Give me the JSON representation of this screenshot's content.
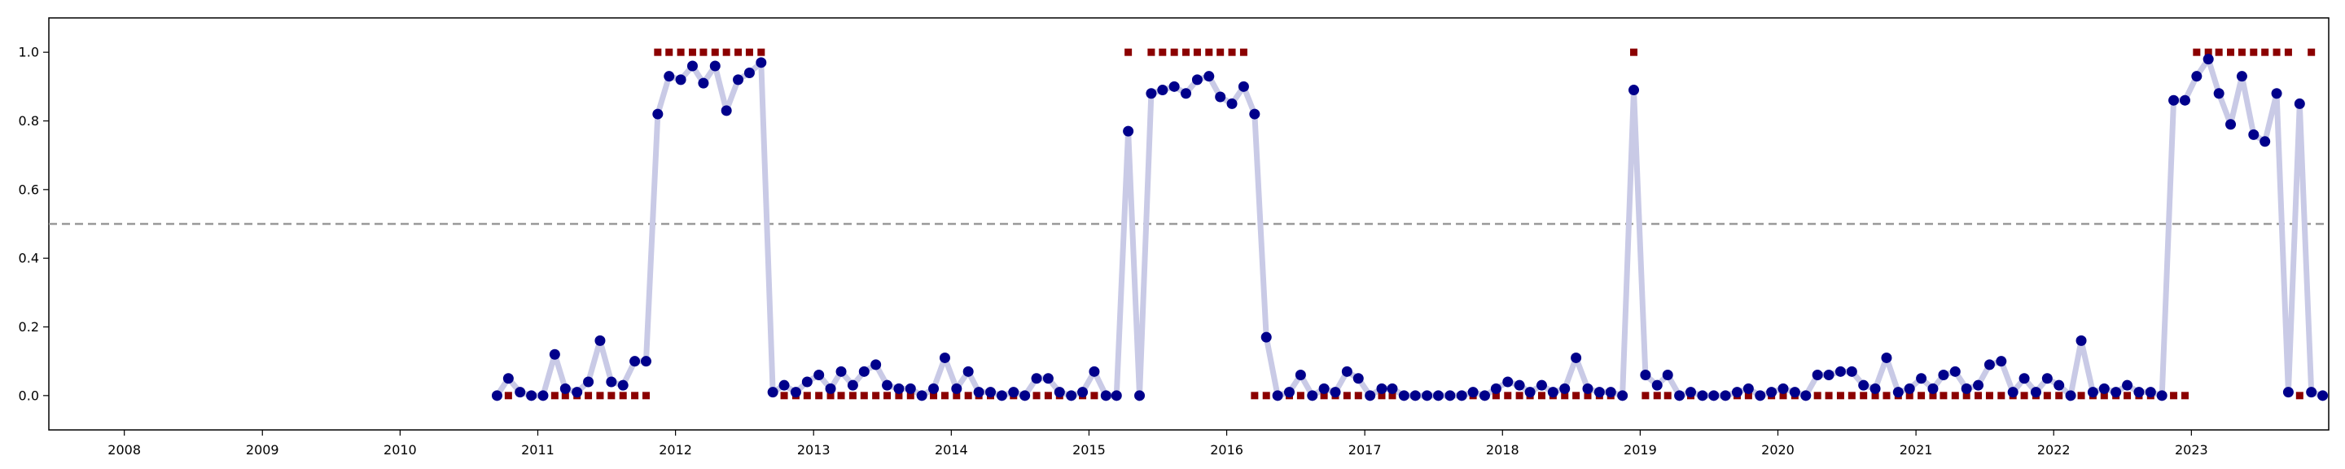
{
  "chart_data": {
    "type": "line",
    "title": "",
    "xlabel": "",
    "ylabel": "",
    "x_range": [
      "2007-06-15",
      "2023-12-31"
    ],
    "ylim": [
      -0.1,
      1.1
    ],
    "grid": false,
    "legend": "none",
    "x_ticks": [
      "2008",
      "2009",
      "2010",
      "2011",
      "2012",
      "2013",
      "2014",
      "2015",
      "2016",
      "2017",
      "2018",
      "2019",
      "2020",
      "2021",
      "2022",
      "2023"
    ],
    "y_ticks": [
      "0.0",
      "0.2",
      "0.4",
      "0.6",
      "0.8",
      "1.0"
    ],
    "threshold": 0.5,
    "colors": {
      "line": "#c9cae6",
      "points": "#00008b",
      "binary": "#8b0000",
      "threshold": "#999999",
      "axis": "#000000"
    },
    "series": [
      {
        "kind": "probability_line_with_points",
        "x": [
          "2010-09",
          "2010-10",
          "2010-11",
          "2010-12",
          "2011-01",
          "2011-02",
          "2011-03",
          "2011-04",
          "2011-05",
          "2011-06",
          "2011-07",
          "2011-08",
          "2011-09",
          "2011-10",
          "2011-11",
          "2011-12",
          "2012-01",
          "2012-02",
          "2012-03",
          "2012-04",
          "2012-05",
          "2012-06",
          "2012-07",
          "2012-08",
          "2012-09",
          "2012-10",
          "2012-11",
          "2012-12",
          "2013-01",
          "2013-02",
          "2013-03",
          "2013-04",
          "2013-05",
          "2013-06",
          "2013-07",
          "2013-08",
          "2013-09",
          "2013-10",
          "2013-11",
          "2013-12",
          "2014-01",
          "2014-02",
          "2014-03",
          "2014-04",
          "2014-05",
          "2014-06",
          "2014-07",
          "2014-08",
          "2014-09",
          "2014-10",
          "2014-11",
          "2014-12",
          "2015-01",
          "2015-02",
          "2015-03",
          "2015-04",
          "2015-05",
          "2015-06",
          "2015-07",
          "2015-08",
          "2015-09",
          "2015-10",
          "2015-11",
          "2015-12",
          "2016-01",
          "2016-02",
          "2016-03",
          "2016-04",
          "2016-05",
          "2016-06",
          "2016-07",
          "2016-08",
          "2016-09",
          "2016-10",
          "2016-11",
          "2016-12",
          "2017-01",
          "2017-02",
          "2017-03",
          "2017-04",
          "2017-05",
          "2017-06",
          "2017-07",
          "2017-08",
          "2017-09",
          "2017-10",
          "2017-11",
          "2017-12",
          "2018-01",
          "2018-02",
          "2018-03",
          "2018-04",
          "2018-05",
          "2018-06",
          "2018-07",
          "2018-08",
          "2018-09",
          "2018-10",
          "2018-11",
          "2018-12",
          "2019-01",
          "2019-02",
          "2019-03",
          "2019-04",
          "2019-05",
          "2019-06",
          "2019-07",
          "2019-08",
          "2019-09",
          "2019-10",
          "2019-11",
          "2019-12",
          "2020-01",
          "2020-02",
          "2020-03",
          "2020-04",
          "2020-05",
          "2020-06",
          "2020-07",
          "2020-08",
          "2020-09",
          "2020-10",
          "2020-11",
          "2020-12",
          "2021-01",
          "2021-02",
          "2021-03",
          "2021-04",
          "2021-05",
          "2021-06",
          "2021-07",
          "2021-08",
          "2021-09",
          "2021-10",
          "2021-11",
          "2021-12",
          "2022-01",
          "2022-02",
          "2022-03",
          "2022-04",
          "2022-05",
          "2022-06",
          "2022-07",
          "2022-08",
          "2022-09",
          "2022-10",
          "2022-11",
          "2022-12",
          "2023-01",
          "2023-02",
          "2023-03",
          "2023-04",
          "2023-05",
          "2023-06",
          "2023-07",
          "2023-08",
          "2023-09",
          "2023-10",
          "2023-11",
          "2023-12"
        ],
        "values": [
          0.0,
          0.05,
          0.01,
          0.0,
          0.0,
          0.12,
          0.02,
          0.01,
          0.04,
          0.16,
          0.04,
          0.03,
          0.1,
          0.1,
          0.82,
          0.93,
          0.92,
          0.96,
          0.91,
          0.96,
          0.83,
          0.92,
          0.94,
          0.97,
          0.01,
          0.03,
          0.01,
          0.04,
          0.06,
          0.02,
          0.07,
          0.03,
          0.07,
          0.09,
          0.03,
          0.02,
          0.02,
          0.0,
          0.02,
          0.11,
          0.02,
          0.07,
          0.01,
          0.01,
          0.0,
          0.01,
          0.0,
          0.05,
          0.05,
          0.01,
          0.0,
          0.01,
          0.07,
          0.0,
          0.0,
          0.77,
          0.0,
          0.88,
          0.89,
          0.9,
          0.88,
          0.92,
          0.93,
          0.87,
          0.85,
          0.9,
          0.82,
          0.17,
          0.0,
          0.01,
          0.06,
          0.0,
          0.02,
          0.01,
          0.07,
          0.05,
          0.0,
          0.02,
          0.02,
          0.0,
          0.0,
          0.0,
          0.0,
          0.0,
          0.0,
          0.01,
          0.0,
          0.02,
          0.04,
          0.03,
          0.01,
          0.03,
          0.01,
          0.02,
          0.11,
          0.02,
          0.01,
          0.01,
          0.0,
          0.89,
          0.06,
          0.03,
          0.06,
          0.0,
          0.01,
          0.0,
          0.0,
          0.0,
          0.01,
          0.02,
          0.0,
          0.01,
          0.02,
          0.01,
          0.0,
          0.06,
          0.06,
          0.07,
          0.07,
          0.03,
          0.02,
          0.11,
          0.01,
          0.02,
          0.05,
          0.02,
          0.06,
          0.07,
          0.02,
          0.03,
          0.09,
          0.1,
          0.01,
          0.05,
          0.01,
          0.05,
          0.03,
          0.0,
          0.16,
          0.01,
          0.02,
          0.01,
          0.03,
          0.01,
          0.01,
          0.0,
          0.86,
          0.86,
          0.93,
          0.98,
          0.88,
          0.79,
          0.93,
          0.76,
          0.74,
          0.88,
          0.01,
          0.85,
          0.01,
          0.0
        ]
      },
      {
        "kind": "binary_markers",
        "x": [
          "2010-10",
          "2011-02",
          "2011-03",
          "2011-04",
          "2011-05",
          "2011-06",
          "2011-07",
          "2011-08",
          "2011-09",
          "2011-10",
          "2011-11",
          "2011-12",
          "2012-01",
          "2012-02",
          "2012-03",
          "2012-04",
          "2012-05",
          "2012-06",
          "2012-07",
          "2012-08",
          "2012-10",
          "2012-11",
          "2012-12",
          "2013-01",
          "2013-02",
          "2013-03",
          "2013-04",
          "2013-05",
          "2013-06",
          "2013-07",
          "2013-08",
          "2013-09",
          "2013-10",
          "2013-11",
          "2013-12",
          "2014-01",
          "2014-02",
          "2014-03",
          "2014-04",
          "2014-05",
          "2014-06",
          "2014-07",
          "2014-08",
          "2014-09",
          "2014-10",
          "2014-11",
          "2014-12",
          "2015-01",
          "2015-02",
          "2015-03",
          "2015-04",
          "2015-06",
          "2015-07",
          "2015-08",
          "2015-09",
          "2015-10",
          "2015-11",
          "2015-12",
          "2016-01",
          "2016-02",
          "2016-03",
          "2016-04",
          "2016-05",
          "2016-06",
          "2016-07",
          "2016-08",
          "2016-09",
          "2016-10",
          "2016-11",
          "2016-12",
          "2017-01",
          "2017-02",
          "2017-03",
          "2017-04",
          "2017-05",
          "2017-06",
          "2017-07",
          "2017-08",
          "2017-09",
          "2017-10",
          "2017-11",
          "2017-12",
          "2018-01",
          "2018-02",
          "2018-03",
          "2018-04",
          "2018-05",
          "2018-06",
          "2018-07",
          "2018-08",
          "2018-09",
          "2018-10",
          "2018-11",
          "2018-12",
          "2019-01",
          "2019-02",
          "2019-03",
          "2019-04",
          "2019-05",
          "2019-06",
          "2019-07",
          "2019-08",
          "2019-09",
          "2019-10",
          "2019-11",
          "2019-12",
          "2020-01",
          "2020-02",
          "2020-03",
          "2020-04",
          "2020-05",
          "2020-06",
          "2020-07",
          "2020-08",
          "2020-09",
          "2020-10",
          "2020-11",
          "2020-12",
          "2021-01",
          "2021-02",
          "2021-03",
          "2021-04",
          "2021-05",
          "2021-06",
          "2021-07",
          "2021-08",
          "2021-09",
          "2021-10",
          "2021-11",
          "2021-12",
          "2022-01",
          "2022-02",
          "2022-03",
          "2022-04",
          "2022-05",
          "2022-06",
          "2022-07",
          "2022-08",
          "2022-09",
          "2022-10",
          "2022-11",
          "2022-12",
          "2023-01",
          "2023-02",
          "2023-03",
          "2023-04",
          "2023-05",
          "2023-06",
          "2023-07",
          "2023-08",
          "2023-09",
          "2023-10",
          "2023-11"
        ],
        "values": [
          0,
          0,
          0,
          0,
          0,
          0,
          0,
          0,
          0,
          0,
          1,
          1,
          1,
          1,
          1,
          1,
          1,
          1,
          1,
          1,
          0,
          0,
          0,
          0,
          0,
          0,
          0,
          0,
          0,
          0,
          0,
          0,
          0,
          0,
          0,
          0,
          0,
          0,
          0,
          0,
          0,
          0,
          0,
          0,
          0,
          0,
          0,
          0,
          0,
          0,
          1,
          1,
          1,
          1,
          1,
          1,
          1,
          1,
          1,
          1,
          0,
          0,
          0,
          0,
          0,
          0,
          0,
          0,
          0,
          0,
          0,
          0,
          0,
          0,
          0,
          0,
          0,
          0,
          0,
          0,
          0,
          0,
          0,
          0,
          0,
          0,
          0,
          0,
          0,
          0,
          0,
          0,
          0,
          1,
          0,
          0,
          0,
          0,
          0,
          0,
          0,
          0,
          0,
          0,
          0,
          0,
          0,
          0,
          0,
          0,
          0,
          0,
          0,
          0,
          0,
          0,
          0,
          0,
          0,
          0,
          0,
          0,
          0,
          0,
          0,
          0,
          0,
          0,
          0,
          0,
          0,
          0,
          0,
          0,
          0,
          0,
          0,
          0,
          0,
          0,
          0,
          0,
          1,
          1,
          1,
          1,
          1,
          1,
          1,
          1,
          1,
          0,
          1
        ]
      }
    ]
  }
}
